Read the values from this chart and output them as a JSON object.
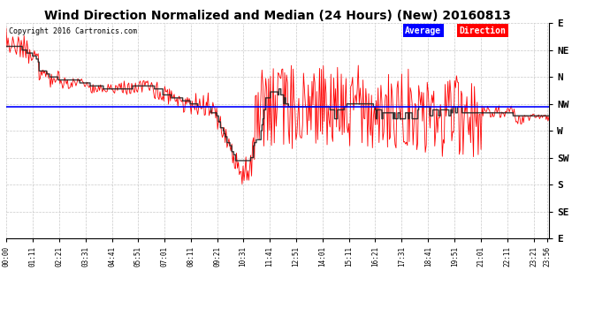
{
  "title": "Wind Direction Normalized and Median (24 Hours) (New) 20160813",
  "copyright": "Copyright 2016 Cartronics.com",
  "ytick_labels": [
    "E",
    "NE",
    "N",
    "NW",
    "W",
    "SW",
    "S",
    "SE",
    "E"
  ],
  "ytick_values": [
    0,
    45,
    90,
    135,
    180,
    225,
    270,
    315,
    360
  ],
  "ylim_min": 360,
  "ylim_max": 0,
  "background_color": "#ffffff",
  "grid_color": "#bbbbbb",
  "line_color_red": "#ff0000",
  "line_color_dark": "#222222",
  "line_color_blue": "#0000ff",
  "average_value": 140,
  "title_fontsize": 10,
  "axis_fontsize": 7,
  "xtick_labels": [
    "00:00",
    "01:11",
    "02:21",
    "03:31",
    "04:41",
    "05:51",
    "07:01",
    "08:11",
    "09:21",
    "10:31",
    "11:41",
    "12:51",
    "14:01",
    "15:11",
    "16:21",
    "17:31",
    "18:41",
    "19:51",
    "21:01",
    "22:11",
    "23:21",
    "23:56"
  ]
}
